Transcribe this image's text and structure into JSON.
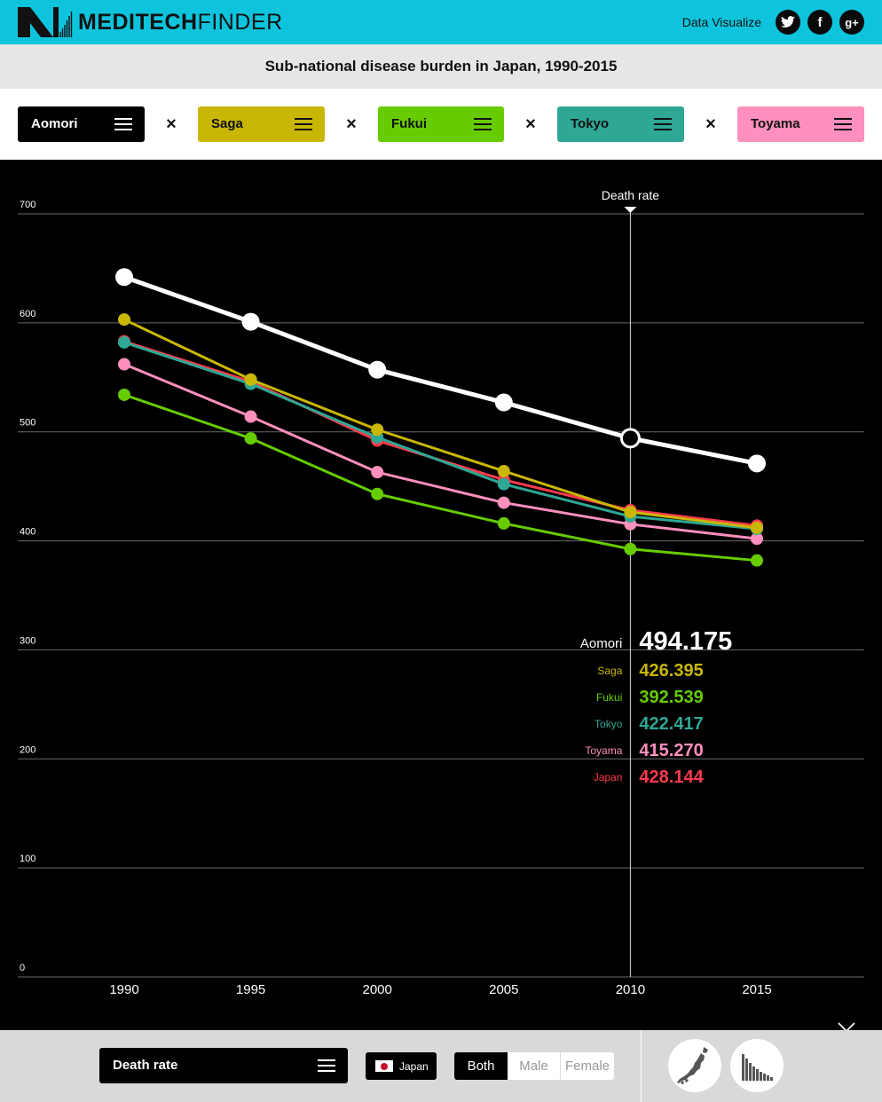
{
  "header": {
    "logo_bold": "MEDITECH",
    "logo_light": "FINDER",
    "link_label": "Data Visualize",
    "social_icons": [
      "twitter-icon",
      "facebook-icon",
      "google-plus-icon"
    ]
  },
  "title": "Sub-national disease burden in Japan, 1990-2015",
  "selectors": [
    {
      "label": "Aomori",
      "bg": "#000000",
      "fg": "#ffffff"
    },
    {
      "label": "Saga",
      "bg": "#c9b705",
      "fg": "#111111"
    },
    {
      "label": "Fukui",
      "bg": "#66cc00",
      "fg": "#111111"
    },
    {
      "label": "Tokyo",
      "bg": "#2ea794",
      "fg": "#111111"
    },
    {
      "label": "Toyama",
      "bg": "#ff8fbd",
      "fg": "#111111"
    }
  ],
  "chart_data": {
    "type": "line",
    "x": [
      1990,
      1995,
      2000,
      2005,
      2010,
      2015
    ],
    "ylim": [
      0,
      700
    ],
    "yticks": [
      0,
      100,
      200,
      300,
      400,
      500,
      600,
      700
    ],
    "cursor_label": "Death rate",
    "cursor_x": 2010,
    "grid": true,
    "series": [
      {
        "name": "Japan",
        "color": "#ff3b4e",
        "values": [
          583,
          546,
          492,
          456,
          428.144,
          414
        ],
        "emphasis": false
      },
      {
        "name": "Fukui",
        "color": "#66cc00",
        "values": [
          534,
          494,
          443,
          416,
          392.539,
          382
        ],
        "emphasis": false
      },
      {
        "name": "Toyama",
        "color": "#ff8fbd",
        "values": [
          562,
          514,
          463,
          435,
          415.27,
          402
        ],
        "emphasis": false
      },
      {
        "name": "Tokyo",
        "color": "#2ea794",
        "values": [
          582,
          544,
          495,
          452,
          422.417,
          411
        ],
        "emphasis": false
      },
      {
        "name": "Saga",
        "color": "#c9b705",
        "values": [
          603,
          548,
          502,
          464,
          426.395,
          412
        ],
        "emphasis": false
      },
      {
        "name": "Aomori",
        "color": "#ffffff",
        "values": [
          642,
          601,
          557,
          527,
          494.175,
          471
        ],
        "emphasis": true
      }
    ],
    "readout": [
      {
        "name": "Aomori",
        "value": "494.175",
        "color": "#ffffff"
      },
      {
        "name": "Saga",
        "value": "426.395",
        "color": "#c9b705"
      },
      {
        "name": "Fukui",
        "value": "392.539",
        "color": "#66cc00"
      },
      {
        "name": "Tokyo",
        "value": "422.417",
        "color": "#2ea794"
      },
      {
        "name": "Toyama",
        "value": "415.270",
        "color": "#ff8fbd"
      },
      {
        "name": "Japan",
        "value": "428.144",
        "color": "#ff3b4e"
      }
    ]
  },
  "bottom": {
    "metric_label": "Death rate",
    "country_label": "Japan",
    "sex_options": [
      "Both",
      "Male",
      "Female"
    ],
    "sex_selected": "Both"
  }
}
